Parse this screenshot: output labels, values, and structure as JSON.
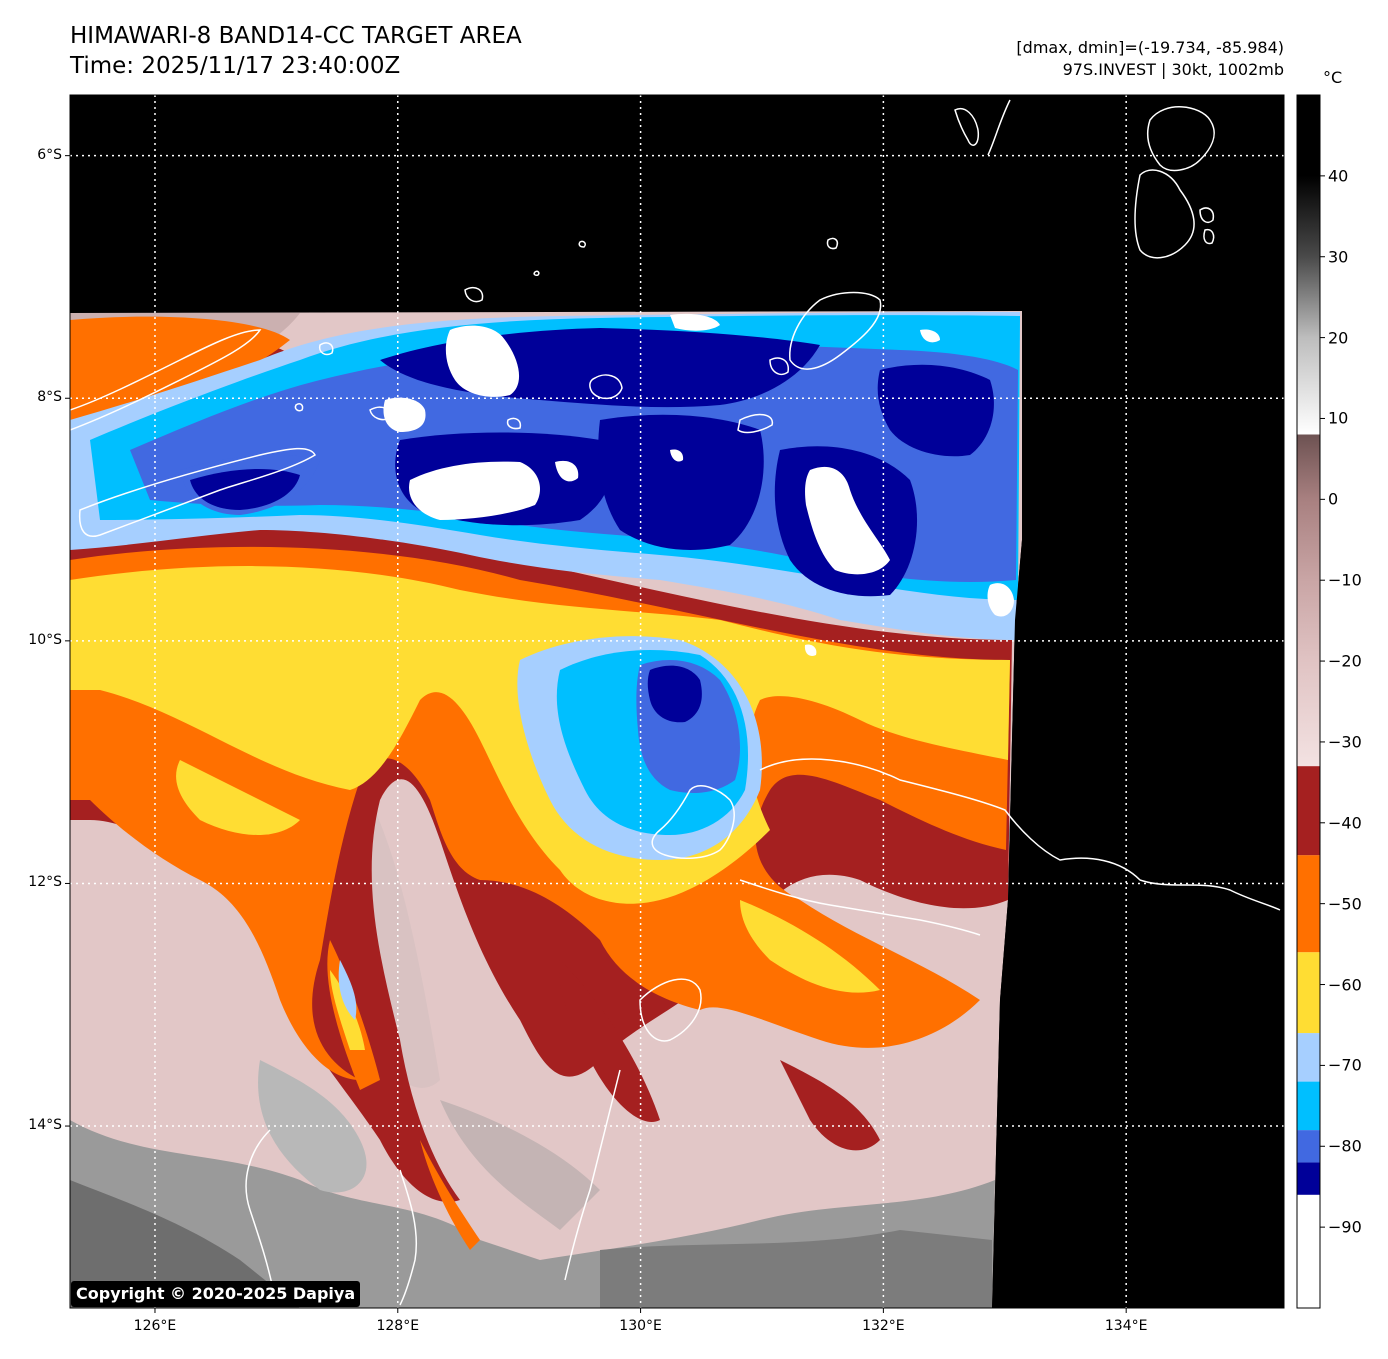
{
  "header": {
    "title_line1": "HIMAWARI-8 BAND14-CC TARGET AREA",
    "title_line2": "Time: 2025/11/17 23:40:00Z",
    "info_line1": "[dmax, dmin]=(-19.734, -85.984)",
    "info_line2": "97S.INVEST | 30kt, 1002mb"
  },
  "colorbar": {
    "unit": "°C",
    "ticks": [
      "40",
      "30",
      "20",
      "10",
      "0",
      "−10",
      "−20",
      "−30",
      "−40",
      "−50",
      "−60",
      "−70",
      "−80",
      "−90"
    ],
    "bands": [
      {
        "from": -100,
        "to": -86,
        "color": "#ffffff"
      },
      {
        "from": -86,
        "to": -82,
        "color": "#000099"
      },
      {
        "from": -82,
        "to": -78,
        "color": "#4169e1"
      },
      {
        "from": -78,
        "to": -72,
        "color": "#00bfff"
      },
      {
        "from": -72,
        "to": -66,
        "color": "#a6cfff"
      },
      {
        "from": -66,
        "to": -56,
        "color": "#ffdd33"
      },
      {
        "from": -56,
        "to": -44,
        "color": "#ff7000"
      },
      {
        "from": -44,
        "to": -33,
        "color": "#a52020"
      }
    ],
    "gradient": [
      {
        "t": -33,
        "color": "#f3e2e2"
      },
      {
        "t": -20,
        "color": "#e0c3c3"
      },
      {
        "t": -10,
        "color": "#c9a5a5"
      },
      {
        "t": 0,
        "color": "#a88080"
      },
      {
        "t": 8,
        "color": "#6d5252"
      },
      {
        "t": 8.01,
        "color": "#ffffff"
      },
      {
        "t": 20,
        "color": "#bdbdbd"
      },
      {
        "t": 30,
        "color": "#4a4a4a"
      },
      {
        "t": 40,
        "color": "#000000"
      },
      {
        "t": 50,
        "color": "#000000"
      }
    ]
  },
  "axes": {
    "lat_labels": [
      "6°S",
      "8°S",
      "10°S",
      "12°S",
      "14°S"
    ],
    "lon_labels": [
      "126°E",
      "128°E",
      "130°E",
      "132°E",
      "134°E"
    ],
    "lat_values": [
      -6,
      -8,
      -10,
      -12,
      -14
    ],
    "lon_values": [
      126,
      128,
      130,
      132,
      134
    ]
  },
  "map": {
    "lon_range": [
      125.3,
      135.3
    ],
    "lat_range": [
      -15.5,
      -5.5
    ],
    "background_color": "#000000"
  },
  "copyright": "Copyright © 2020-2025 Dapiya"
}
